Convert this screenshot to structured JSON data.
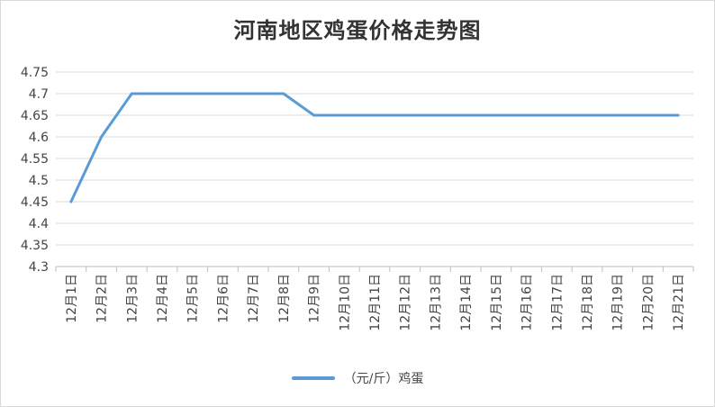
{
  "chart_data": {
    "type": "line",
    "title": "河南地区鸡蛋价格走势图",
    "categories": [
      "12月1日",
      "12月2日",
      "12月3日",
      "12月4日",
      "12月5日",
      "12月6日",
      "12月7日",
      "12月8日",
      "12月9日",
      "12月10日",
      "12月11日",
      "12月12日",
      "12月13日",
      "12月14日",
      "12月15日",
      "12月16日",
      "12月17日",
      "12月18日",
      "12月19日",
      "12月20日",
      "12月21日"
    ],
    "series": [
      {
        "name": "（元/斤）鸡蛋",
        "values": [
          4.45,
          4.6,
          4.7,
          4.7,
          4.7,
          4.7,
          4.7,
          4.7,
          4.65,
          4.65,
          4.65,
          4.65,
          4.65,
          4.65,
          4.65,
          4.65,
          4.65,
          4.65,
          4.65,
          4.65,
          4.65
        ],
        "color": "#5b9bd5"
      }
    ],
    "y_ticks": [
      "4.75",
      "4.7",
      "4.65",
      "4.6",
      "4.55",
      "4.5",
      "4.45",
      "4.4",
      "4.35",
      "4.3"
    ],
    "ylim": [
      4.3,
      4.75
    ],
    "xlabel": "",
    "ylabel": "",
    "grid": true,
    "legend": "bottom"
  }
}
